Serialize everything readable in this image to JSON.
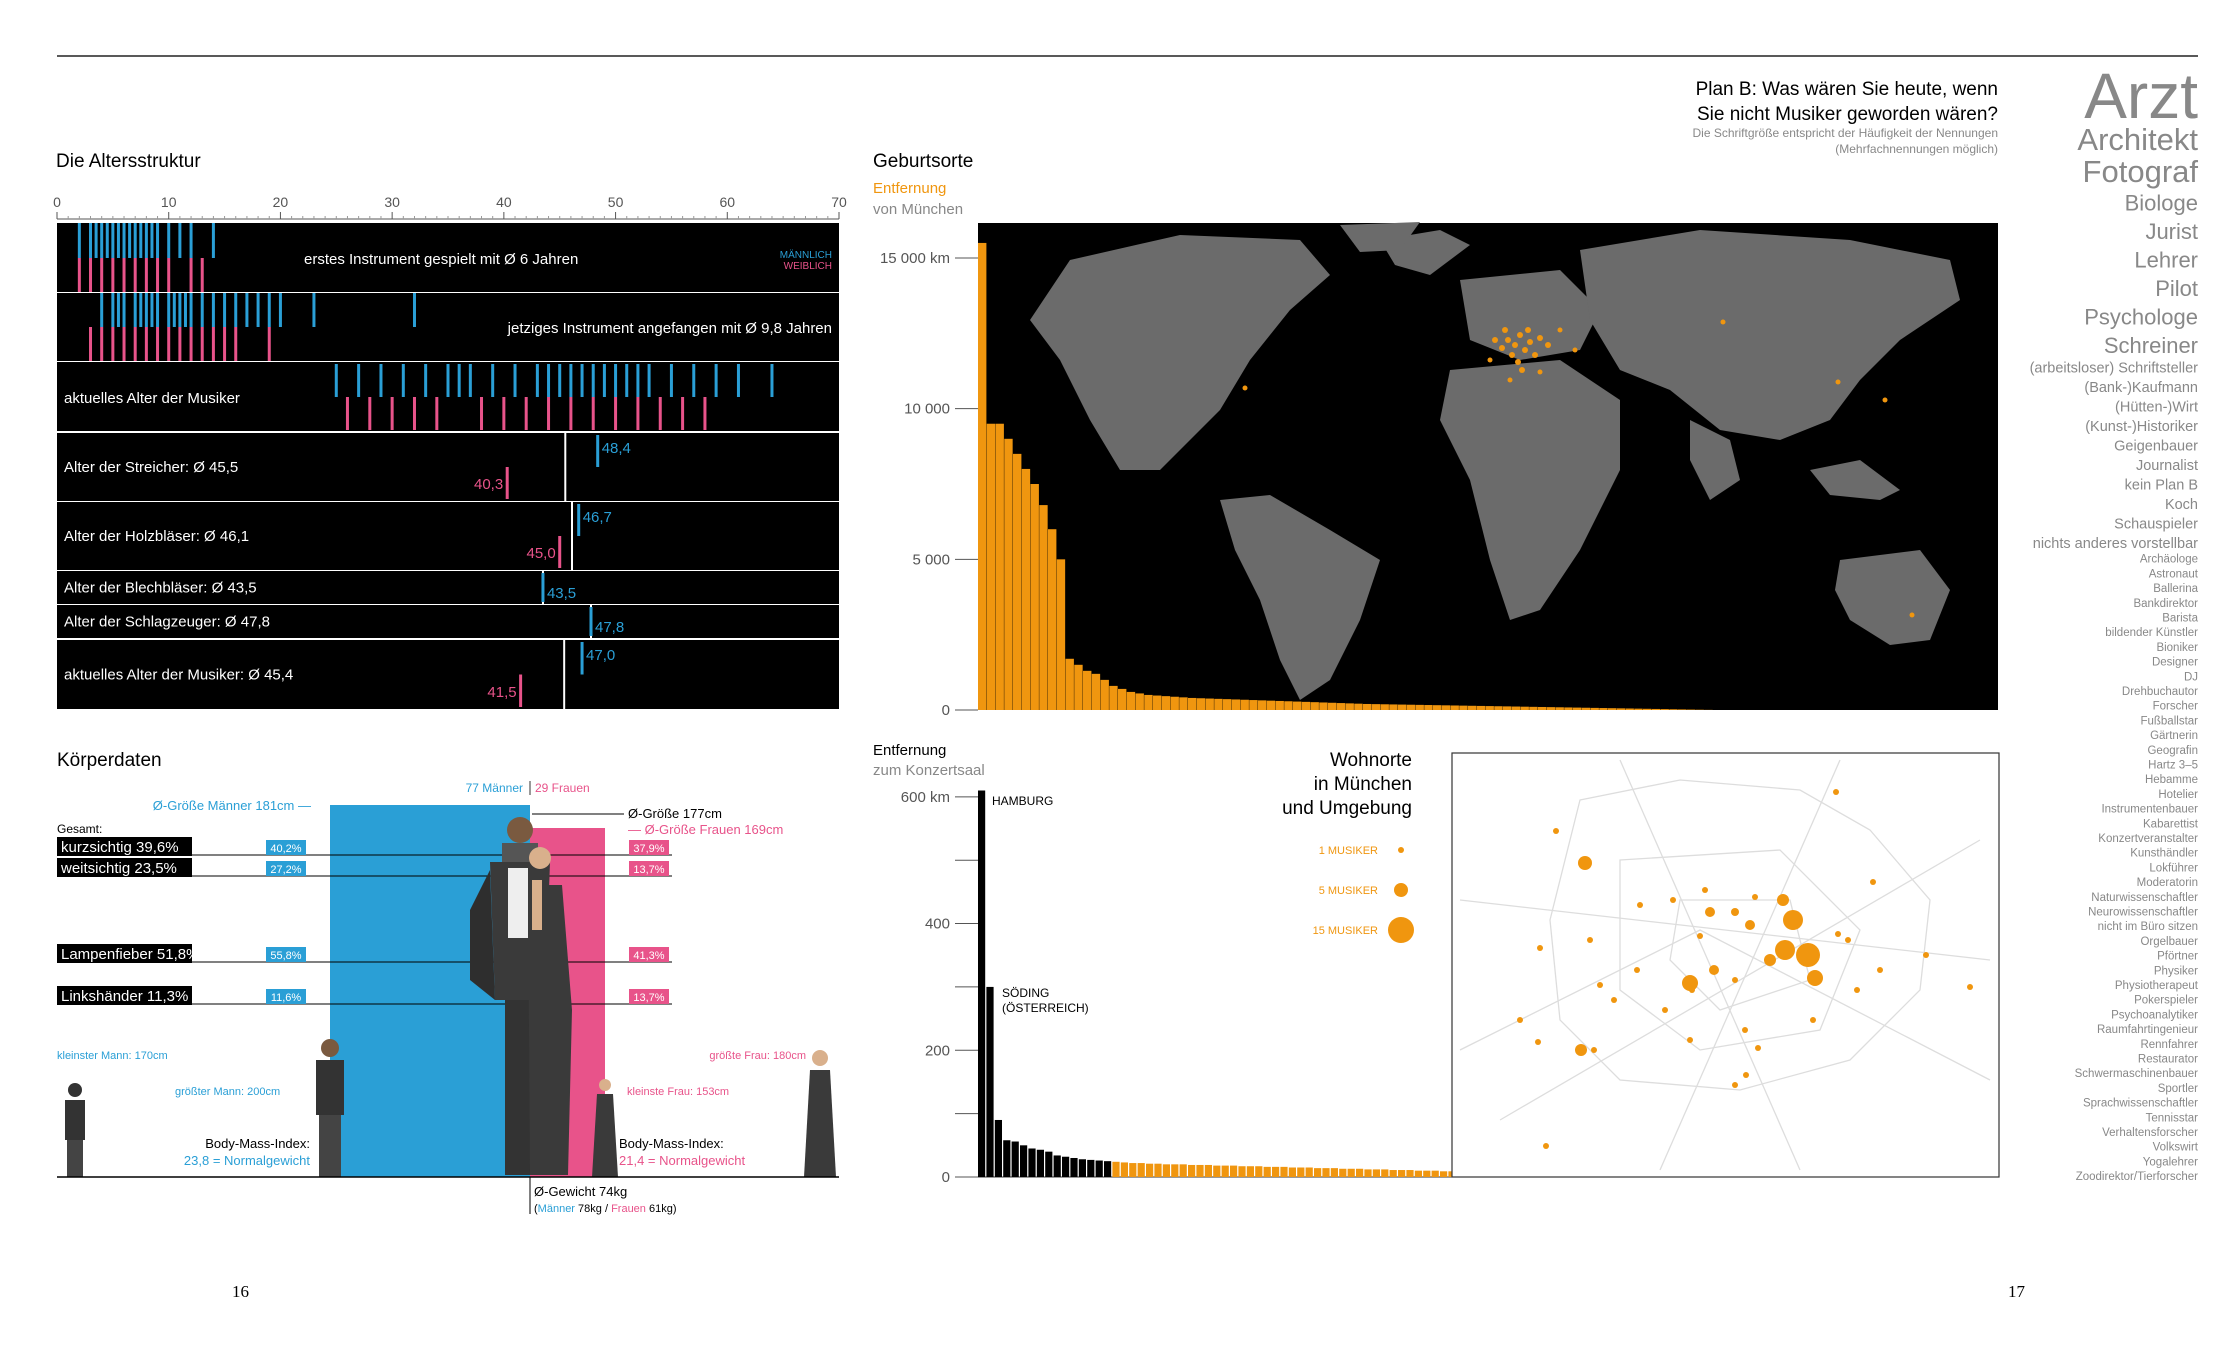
{
  "colors": {
    "male": "#2a9fd6",
    "female": "#e8538a",
    "orange": "#f0960f",
    "black": "#000000",
    "gray": "#888888",
    "land": "#6b6b6b"
  },
  "page_numbers": {
    "left": "16",
    "right": "17"
  },
  "age": {
    "title": "Die Altersstruktur",
    "axis_ticks": [
      "0",
      "10",
      "20",
      "30",
      "40",
      "50",
      "60",
      "70"
    ],
    "legend_male": "MÄNNLICH",
    "legend_female": "WEIBLICH",
    "row1_label": "erstes Instrument gespielt mit Ø 6 Jahren",
    "row2_label": "jetziges Instrument angefangen mit Ø 9,8 Jahren",
    "row3_label": "aktuelles Alter der Musiker",
    "sections": [
      {
        "label": "Alter der Streicher: Ø 45,5",
        "avg": 45.5,
        "male": 48.4,
        "male_label": "48,4",
        "female": 40.3,
        "female_label": "40,3"
      },
      {
        "label": "Alter der Holzbläser: Ø 46,1",
        "avg": 46.1,
        "male": 46.7,
        "male_label": "46,7",
        "female": 45.0,
        "female_label": "45,0"
      },
      {
        "label": "Alter der Blechbläser: Ø 43,5",
        "avg": 43.5,
        "male": 43.5,
        "male_label": "43,5",
        "female": null,
        "female_label": ""
      },
      {
        "label": "Alter der Schlagzeuger: Ø 47,8",
        "avg": 47.8,
        "male": 47.8,
        "male_label": "47,8",
        "female": null,
        "female_label": ""
      },
      {
        "label": "aktuelles Alter der Musiker: Ø 45,4",
        "avg": 45.4,
        "male": 47.0,
        "male_label": "47,0",
        "female": 41.5,
        "female_label": "41,5"
      }
    ]
  },
  "body": {
    "title": "Körperdaten",
    "men_count": "77 Männer",
    "women_count": "29 Frauen",
    "men_height_label": "Ø-Größe Männer 181cm —",
    "total_height_label": "Ø-Größe 177cm",
    "women_height_label": "— Ø-Größe Frauen 169cm",
    "gesamt": "Gesamt:",
    "stats": [
      {
        "label": "kurzsichtig 39,6%",
        "male": "40,2%",
        "female": "37,9%"
      },
      {
        "label": "weitsichtig 23,5%",
        "male": "27,2%",
        "female": "13,7%"
      },
      {
        "label": "Lampenfieber 51,8%",
        "male": "55,8%",
        "female": "41,3%"
      },
      {
        "label": "Linkshänder 11,3%",
        "male": "11,6%",
        "female": "13,7%"
      }
    ],
    "smallest_man": "kleinster Mann: 170cm",
    "tallest_man": "größter Mann: 200cm",
    "tallest_woman": "größte Frau: 180cm",
    "smallest_woman": "kleinste Frau: 153cm",
    "bmi_title": "Body-Mass-Index:",
    "bmi_men": "23,8 = Normalgewicht",
    "bmi_women": "21,4 = Normalgewicht",
    "weight": "Ø-Gewicht 74kg",
    "weight_men": "Männer",
    "weight_men_value": "78kg /",
    "weight_women": "Frauen",
    "weight_women_value": "61kg)"
  },
  "birth": {
    "title": "Geburtsorte",
    "sub1": "Entfernung",
    "sub2": "von München",
    "y_ticks": [
      "15 000 km",
      "10 000",
      "5 000",
      "0"
    ]
  },
  "residence": {
    "sub1": "Entfernung",
    "sub2": "zum Konzertsaal",
    "y_ticks": [
      "600 km",
      "400",
      "200",
      "0"
    ],
    "hamburg": "HAMBURG",
    "soeding_1": "SÖDING",
    "soeding_2": "(ÖSTERREICH)",
    "map_title_1": "Wohnorte",
    "map_title_2": "in München",
    "map_title_3": "und Umgebung",
    "legend": [
      "1 MUSIKER",
      "5 MUSIKER",
      "15 MUSIKER"
    ]
  },
  "planb": {
    "title_1": "Plan B: Was wären Sie heute, wenn",
    "title_2": "Sie nicht Musiker geworden wären?",
    "note_1": "Die Schriftgröße entspricht der Häufigkeit der Nennungen",
    "note_2": "(Mehrfachnennungen möglich)",
    "words": [
      {
        "text": "Arzt",
        "weight": 9
      },
      {
        "text": "Architekt",
        "weight": 5
      },
      {
        "text": "Fotograf",
        "weight": 5
      },
      {
        "text": "Biologe",
        "weight": 3
      },
      {
        "text": "Jurist",
        "weight": 3
      },
      {
        "text": "Lehrer",
        "weight": 3
      },
      {
        "text": "Pilot",
        "weight": 3
      },
      {
        "text": "Psychologe",
        "weight": 3
      },
      {
        "text": "Schreiner",
        "weight": 3
      },
      {
        "text": "(arbeitsloser) Schriftsteller",
        "weight": 2
      },
      {
        "text": "(Bank-)Kaufmann",
        "weight": 2
      },
      {
        "text": "(Hütten-)Wirt",
        "weight": 2
      },
      {
        "text": "(Kunst-)Historiker",
        "weight": 2
      },
      {
        "text": "Geigenbauer",
        "weight": 2
      },
      {
        "text": "Journalist",
        "weight": 2
      },
      {
        "text": "kein Plan B",
        "weight": 2
      },
      {
        "text": "Koch",
        "weight": 2
      },
      {
        "text": "Schauspieler",
        "weight": 2
      },
      {
        "text": "nichts anderes vorstellbar",
        "weight": 2
      },
      {
        "text": "Archäologe",
        "weight": 1
      },
      {
        "text": "Astronaut",
        "weight": 1
      },
      {
        "text": "Ballerina",
        "weight": 1
      },
      {
        "text": "Bankdirektor",
        "weight": 1
      },
      {
        "text": "Barista",
        "weight": 1
      },
      {
        "text": "bildender Künstler",
        "weight": 1
      },
      {
        "text": "Bioniker",
        "weight": 1
      },
      {
        "text": "Designer",
        "weight": 1
      },
      {
        "text": "DJ",
        "weight": 1
      },
      {
        "text": "Drehbuchautor",
        "weight": 1
      },
      {
        "text": "Forscher",
        "weight": 1
      },
      {
        "text": "Fußballstar",
        "weight": 1
      },
      {
        "text": "Gärtnerin",
        "weight": 1
      },
      {
        "text": "Geografin",
        "weight": 1
      },
      {
        "text": "Hartz 3–5",
        "weight": 1
      },
      {
        "text": "Hebamme",
        "weight": 1
      },
      {
        "text": "Hotelier",
        "weight": 1
      },
      {
        "text": "Instrumentenbauer",
        "weight": 1
      },
      {
        "text": "Kabarettist",
        "weight": 1
      },
      {
        "text": "Konzertveranstalter",
        "weight": 1
      },
      {
        "text": "Kunsthändler",
        "weight": 1
      },
      {
        "text": "Lokführer",
        "weight": 1
      },
      {
        "text": "Moderatorin",
        "weight": 1
      },
      {
        "text": "Naturwissenschaftler",
        "weight": 1
      },
      {
        "text": "Neurowissenschaftler",
        "weight": 1
      },
      {
        "text": "nicht im Büro sitzen",
        "weight": 1
      },
      {
        "text": "Orgelbauer",
        "weight": 1
      },
      {
        "text": "Pförtner",
        "weight": 1
      },
      {
        "text": "Physiker",
        "weight": 1
      },
      {
        "text": "Physiotherapeut",
        "weight": 1
      },
      {
        "text": "Pokerspieler",
        "weight": 1
      },
      {
        "text": "Psychoanalytiker",
        "weight": 1
      },
      {
        "text": "Raumfahrtingenieur",
        "weight": 1
      },
      {
        "text": "Rennfahrer",
        "weight": 1
      },
      {
        "text": "Restaurator",
        "weight": 1
      },
      {
        "text": "Schwermaschinenbauer",
        "weight": 1
      },
      {
        "text": "Sportler",
        "weight": 1
      },
      {
        "text": "Sprachwissenschaftler",
        "weight": 1
      },
      {
        "text": "Tennisstar",
        "weight": 1
      },
      {
        "text": "Verhaltensforscher",
        "weight": 1
      },
      {
        "text": "Volkswirt",
        "weight": 1
      },
      {
        "text": "Yogalehrer",
        "weight": 1
      },
      {
        "text": "Zoodirektor/Tierforscher",
        "weight": 1
      }
    ]
  },
  "chart_data": [
    {
      "type": "bar",
      "title": "Geburtsorte",
      "xlabel": "",
      "ylabel": "Entfernung von München",
      "ylim": [
        0,
        16000
      ],
      "values": [
        15500,
        9500,
        9500,
        9000,
        8500,
        8000,
        7500,
        6800,
        6000,
        5000,
        1700,
        1500,
        1300,
        1200,
        1000,
        800,
        700,
        600,
        550,
        500,
        480,
        460,
        440,
        420,
        400,
        390,
        380,
        370,
        360,
        350,
        340,
        330,
        320,
        310,
        300,
        290,
        280,
        270,
        260,
        250,
        240,
        230,
        220,
        210,
        200,
        195,
        190,
        185,
        180,
        175,
        170,
        165,
        160,
        155,
        150,
        145,
        140,
        135,
        130,
        125,
        120,
        115,
        110,
        105,
        100,
        95,
        90,
        85,
        80,
        75,
        70,
        65,
        60,
        55,
        50,
        45,
        40,
        35,
        30,
        25,
        20,
        15,
        10,
        5
      ]
    },
    {
      "type": "bar",
      "title": "",
      "xlabel": "",
      "ylabel": "Entfernung zum Konzertsaal",
      "ylim": [
        0,
        600
      ],
      "values": [
        610,
        300,
        90,
        58,
        56,
        50,
        45,
        43,
        40,
        34,
        32,
        30,
        28,
        27,
        26,
        25,
        24,
        23,
        22,
        22,
        21,
        21,
        20,
        20,
        20,
        19,
        19,
        19,
        18,
        18,
        18,
        17,
        17,
        17,
        16,
        16,
        16,
        15,
        15,
        15,
        14,
        14,
        14,
        13,
        13,
        13,
        12,
        12,
        12,
        11,
        11,
        11,
        10,
        10,
        10,
        9,
        9,
        9,
        8,
        8,
        8,
        7,
        7,
        7,
        6,
        6,
        6,
        5,
        5,
        5,
        4,
        4,
        4,
        3,
        3,
        3,
        2,
        2,
        2,
        1,
        1,
        1
      ],
      "black_count": 16
    }
  ]
}
